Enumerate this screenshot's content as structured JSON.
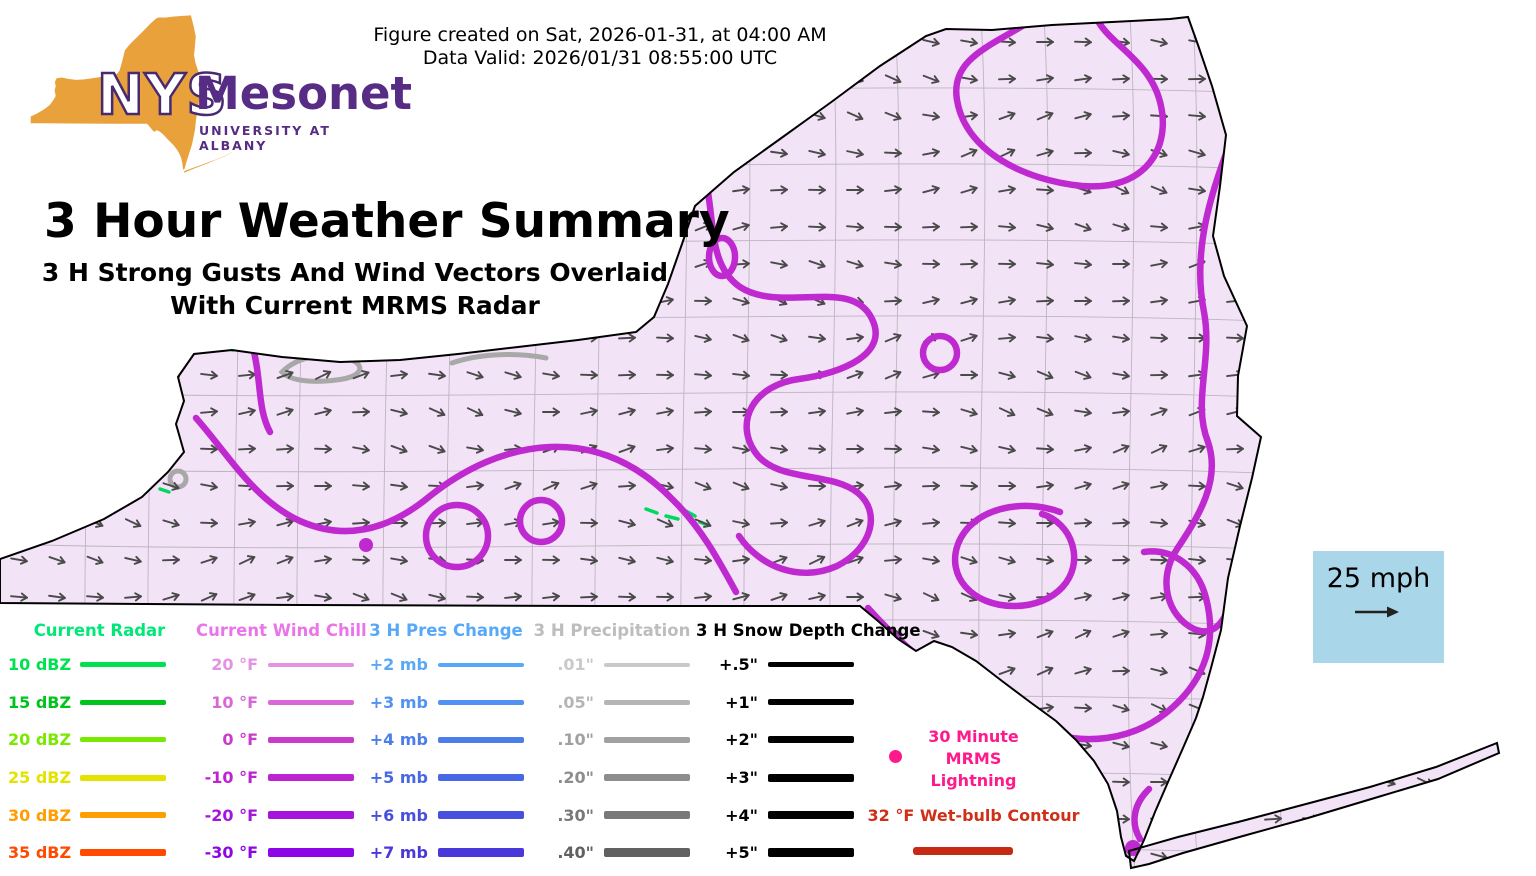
{
  "header": {
    "created": "Figure created on Sat, 2026-01-31, at 04:00 AM",
    "valid": "Data Valid: 2026/01/31 08:55:00 UTC"
  },
  "logo": {
    "acronym": "NYS",
    "name": "Mesonet",
    "subtitle": "UNIVERSITY AT ALBANY"
  },
  "titles": {
    "main": "3 Hour Weather Summary",
    "sub1": "3 H Strong Gusts And Wind Vectors Overlaid",
    "sub2": "With Current MRMS Radar"
  },
  "wind_scale": {
    "label": "25 mph",
    "bg": "#a9d6e8"
  },
  "map": {
    "region": "New York State",
    "wind_vectors": {
      "direction": "eastward",
      "reference_speed": "25 mph"
    },
    "colors": {
      "state_fill": "#f3e3f7",
      "state_border": "#000000",
      "county_line": "#8f8f8f",
      "wind_arrow": "#4a4a4a",
      "wind_chill_contour": "#bf2ad0",
      "precip_contour": "#a8a8a8",
      "radar_echo": "#00d95f",
      "background": "#ffffff"
    }
  },
  "legend": {
    "columns": [
      {
        "id": "radar",
        "title": "Current Radar",
        "title_color": "#00e878",
        "entries": [
          {
            "label": "10 dBZ",
            "color": "#00e14f",
            "w": 5
          },
          {
            "label": "15 dBZ",
            "color": "#00c41c",
            "w": 5
          },
          {
            "label": "20 dBZ",
            "color": "#7ae800",
            "w": 5
          },
          {
            "label": "25 dBZ",
            "color": "#e3e300",
            "w": 6
          },
          {
            "label": "30 dBZ",
            "color": "#ff9e00",
            "w": 6
          },
          {
            "label": "35 dBZ",
            "color": "#ff4a00",
            "w": 7
          }
        ]
      },
      {
        "id": "wind-chill",
        "title": "Current Wind Chill",
        "title_color": "#ea75e8",
        "entries": [
          {
            "label": "20 °F",
            "color": "#e393e3",
            "w": 4
          },
          {
            "label": "10 °F",
            "color": "#d867d8",
            "w": 5
          },
          {
            "label": "0 °F",
            "color": "#cb3bcb",
            "w": 6
          },
          {
            "label": "-10 °F",
            "color": "#bc24d2",
            "w": 7
          },
          {
            "label": "-20 °F",
            "color": "#a514dc",
            "w": 8
          },
          {
            "label": "-30 °F",
            "color": "#8d07e6",
            "w": 9
          }
        ]
      },
      {
        "id": "pres-change",
        "title": "3 H Pres Change",
        "title_color": "#58a8f8",
        "entries": [
          {
            "label": "+2 mb",
            "color": "#58a8f8",
            "w": 4
          },
          {
            "label": "+3 mb",
            "color": "#5192f2",
            "w": 5
          },
          {
            "label": "+4 mb",
            "color": "#4c7dec",
            "w": 6
          },
          {
            "label": "+5 mb",
            "color": "#4867e5",
            "w": 7
          },
          {
            "label": "+6 mb",
            "color": "#4750de",
            "w": 8
          },
          {
            "label": "+7 mb",
            "color": "#4b38d8",
            "w": 9
          }
        ]
      },
      {
        "id": "precipitation",
        "title": "3 H Precipitation",
        "title_color": "#bdbdbd",
        "entries": [
          {
            "label": ".01\"",
            "color": "#c9c9c9",
            "w": 4
          },
          {
            "label": ".05\"",
            "color": "#b5b5b5",
            "w": 5
          },
          {
            "label": ".10\"",
            "color": "#a1a1a1",
            "w": 6
          },
          {
            "label": ".20\"",
            "color": "#8d8d8d",
            "w": 7
          },
          {
            "label": ".30\"",
            "color": "#797979",
            "w": 8
          },
          {
            "label": ".40\"",
            "color": "#616161",
            "w": 9
          }
        ]
      },
      {
        "id": "snow-depth",
        "title": "3 H Snow Depth Change",
        "title_color": "#000000",
        "entries": [
          {
            "label": "+.5\"",
            "color": "#000000",
            "w": 5
          },
          {
            "label": "+1\"",
            "color": "#000000",
            "w": 6
          },
          {
            "label": "+2\"",
            "color": "#000000",
            "w": 7
          },
          {
            "label": "+3\"",
            "color": "#000000",
            "w": 8
          },
          {
            "label": "+4\"",
            "color": "#000000",
            "w": 8
          },
          {
            "label": "+5\"",
            "color": "#000000",
            "w": 9
          }
        ]
      }
    ],
    "lightning": {
      "lines": [
        "30 Minute",
        "MRMS",
        "Lightning"
      ],
      "color": "#ff1a8c"
    },
    "wet_bulb": {
      "label": "32 °F Wet-bulb Contour",
      "color": "#d03018",
      "line_color": "#c62a12"
    }
  }
}
